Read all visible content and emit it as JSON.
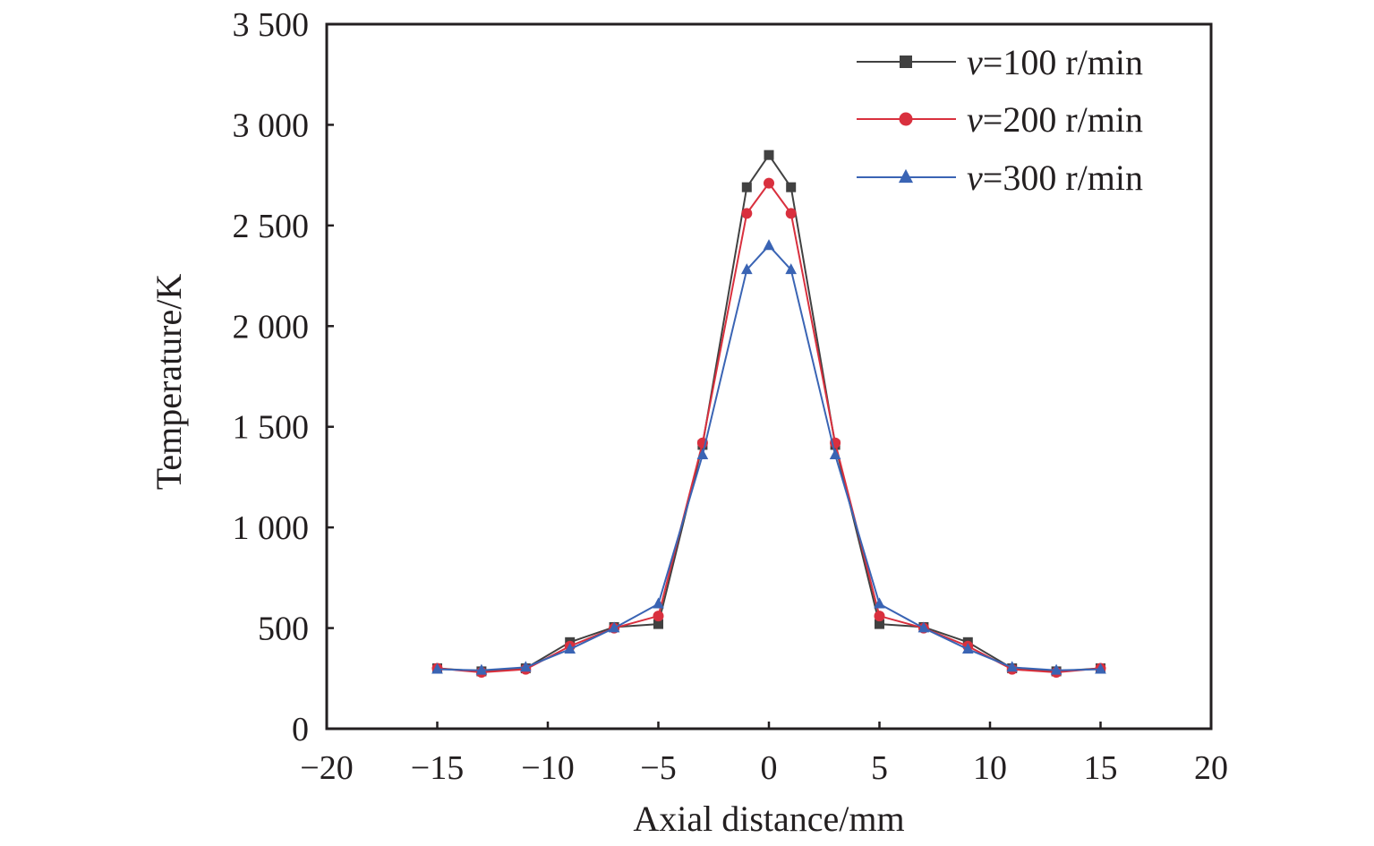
{
  "chart_data": {
    "type": "line",
    "xlabel": "Axial distance/mm",
    "ylabel": "Temperature/K",
    "xlim": [
      -20,
      20
    ],
    "ylim": [
      0,
      3500
    ],
    "xticks": [
      -20,
      -15,
      -10,
      -5,
      0,
      5,
      10,
      15,
      20
    ],
    "xtick_labels": [
      "−20",
      "−15",
      "−10",
      "−5",
      "0",
      "5",
      "10",
      "15",
      "20"
    ],
    "yticks": [
      0,
      500,
      1000,
      1500,
      2000,
      2500,
      3000,
      3500
    ],
    "ytick_labels": [
      "0",
      "500",
      "1 000",
      "1 500",
      "2 000",
      "2 500",
      "3 000",
      "3 500"
    ],
    "grid": false,
    "legend_position": "top-right",
    "x": [
      -15,
      -13,
      -11,
      -9,
      -7,
      -5,
      -3,
      -1,
      0,
      1,
      3,
      5,
      7,
      9,
      11,
      13,
      15
    ],
    "series": [
      {
        "name": "v=100 r/min",
        "legend_var": "v",
        "legend_rest": "=100 r/min",
        "color": "#414141",
        "marker": "square",
        "values": [
          300,
          285,
          300,
          430,
          505,
          520,
          1410,
          2690,
          2850,
          2690,
          1410,
          520,
          505,
          430,
          300,
          285,
          300
        ]
      },
      {
        "name": "v=200 r/min",
        "legend_var": "v",
        "legend_rest": "=200 r/min",
        "color": "#d9303e",
        "marker": "circle",
        "values": [
          300,
          280,
          295,
          410,
          500,
          560,
          1420,
          2560,
          2710,
          2560,
          1420,
          560,
          500,
          410,
          295,
          280,
          300
        ]
      },
      {
        "name": "v=300 r/min",
        "legend_var": "v",
        "legend_rest": "=300 r/min",
        "color": "#3a64b4",
        "marker": "triangle",
        "values": [
          295,
          290,
          305,
          395,
          500,
          620,
          1360,
          2280,
          2400,
          2280,
          1360,
          620,
          500,
          395,
          305,
          290,
          295
        ]
      }
    ]
  }
}
